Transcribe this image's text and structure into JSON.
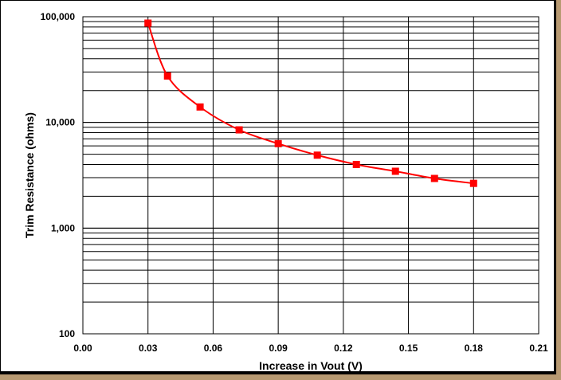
{
  "chart_data": {
    "type": "line",
    "title": "",
    "xlabel": "Increase in Vout (V)",
    "ylabel": "Trim Resistance (ohms)",
    "xlim": [
      0,
      0.21
    ],
    "ylim": [
      100,
      100000
    ],
    "yscale": "log",
    "grid": true,
    "x_ticks": [
      "0.00",
      "0.03",
      "0.06",
      "0.09",
      "0.12",
      "0.15",
      "0.18",
      "0.21"
    ],
    "y_ticks": [
      "100",
      "1,000",
      "10,000",
      "100,000"
    ],
    "series": [
      {
        "color": "#ff0000",
        "marker": "square",
        "x": [
          0.03,
          0.039,
          0.054,
          0.072,
          0.09,
          0.108,
          0.126,
          0.144,
          0.162,
          0.18
        ],
        "y": [
          87000,
          27500,
          14000,
          8500,
          6300,
          4900,
          4000,
          3450,
          2950,
          2650
        ]
      }
    ]
  }
}
